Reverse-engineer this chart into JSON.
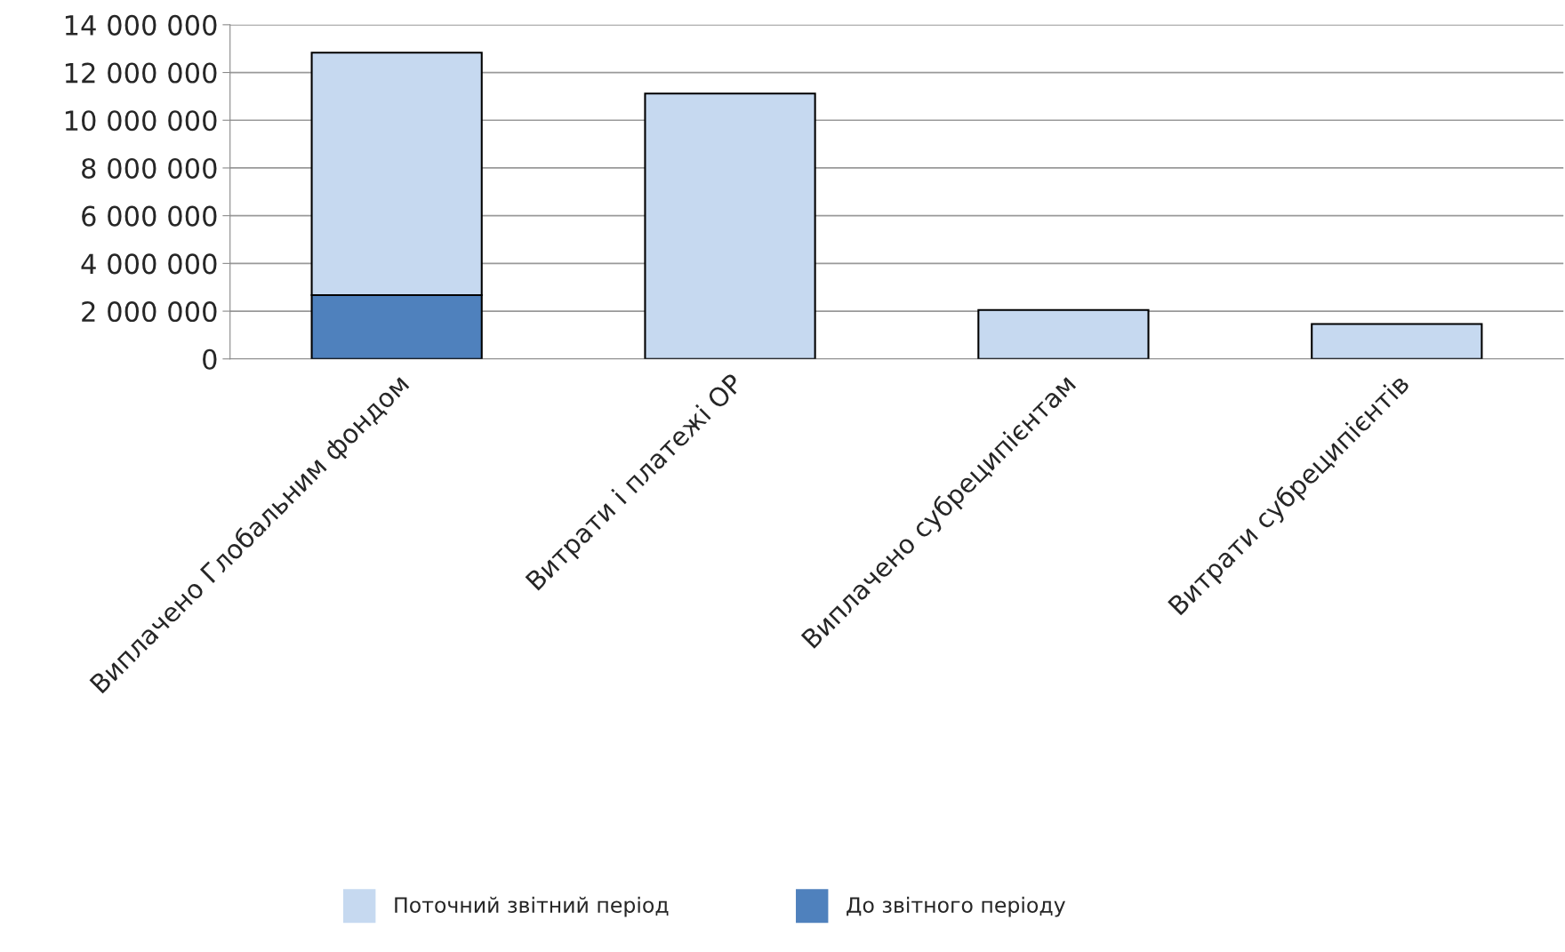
{
  "chart_data": {
    "type": "bar",
    "stacked": true,
    "categories": [
      "Виплачено Глобальним фондом",
      "Витрати і платежі ОР",
      "Виплачено субреципієнтам",
      "Витрати субреципієнтів"
    ],
    "series": [
      {
        "name": "До звітного періоду",
        "color": "#4f81bd",
        "values": [
          2670000,
          null,
          null,
          null
        ]
      },
      {
        "name": "Поточний звітний період",
        "color": "#c6d9f0",
        "values": [
          10160000,
          11120000,
          2050000,
          1460000
        ]
      }
    ],
    "ylim": [
      0,
      14000000
    ],
    "yticks": [
      {
        "value": 0,
        "label": "0"
      },
      {
        "value": 2000000,
        "label": "2 000 000"
      },
      {
        "value": 4000000,
        "label": "4 000 000"
      },
      {
        "value": 6000000,
        "label": "6 000 000"
      },
      {
        "value": 8000000,
        "label": "8 000 000"
      },
      {
        "value": 10000000,
        "label": "10 000 000"
      },
      {
        "value": 12000000,
        "label": "12 000 000"
      },
      {
        "value": 14000000,
        "label": "14 000 000"
      }
    ],
    "grid": "y",
    "legend": "bottom"
  }
}
